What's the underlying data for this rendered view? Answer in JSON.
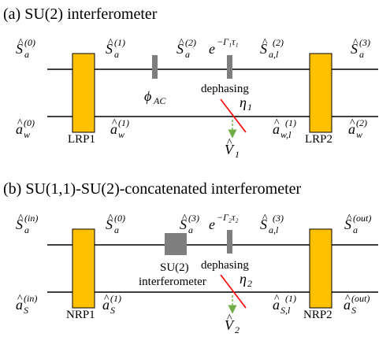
{
  "panel_a": {
    "caption": "(a) SU(2) interferometer",
    "top_labels": [
      {
        "base": "S",
        "sub": "a",
        "sup": "(0)"
      },
      {
        "base": "S",
        "sub": "a",
        "sup": "(1)"
      },
      {
        "base": "S",
        "sub": "a",
        "sup": "(2)"
      },
      {
        "base": "S",
        "sub": "a,l",
        "sup": "(2)"
      },
      {
        "base": "S",
        "sub": "a",
        "sup": "(3)"
      }
    ],
    "decay": {
      "base": "e",
      "exp": "−Γ₁τ₁"
    },
    "bottom_labels": [
      {
        "base": "a",
        "sub": "w",
        "sup": "(0)"
      },
      {
        "base": "a",
        "sub": "w",
        "sup": "(1)"
      },
      {
        "base": "a",
        "sub": "w,l",
        "sup": "(1)"
      },
      {
        "base": "a",
        "sub": "w",
        "sup": "(2)"
      }
    ],
    "box_left": "LRP1",
    "box_right": "LRP2",
    "phase": {
      "base": "ϕ",
      "sub": "AC"
    },
    "dephasing": "dephasing",
    "eta": {
      "base": "η",
      "sub": "1"
    },
    "vacuum": {
      "base": "V",
      "sub": "1"
    }
  },
  "panel_b": {
    "caption": "(b) SU(1,1)-SU(2)-concatenated interferometer",
    "top_labels": [
      {
        "base": "S",
        "sub": "a",
        "sup": "(in)"
      },
      {
        "base": "S",
        "sub": "a",
        "sup": "(0)"
      },
      {
        "base": "S",
        "sub": "a",
        "sup": "(3)"
      },
      {
        "base": "S",
        "sub": "a,l",
        "sup": "(3)"
      },
      {
        "base": "S",
        "sub": "a",
        "sup": "(out)"
      }
    ],
    "decay": {
      "base": "e",
      "exp": "−Γ₂τ₂"
    },
    "bottom_labels": [
      {
        "base": "a",
        "sub": "S",
        "sup": "(in)"
      },
      {
        "base": "a",
        "sub": "S",
        "sup": "(1)"
      },
      {
        "base": "a",
        "sub": "S,l",
        "sup": "(1)"
      },
      {
        "base": "a",
        "sub": "S",
        "sup": "(out)"
      }
    ],
    "box_left": "NRP1",
    "box_right": "NRP2",
    "su2_box": "SU(2)",
    "su2_caption": "interferometer",
    "dephasing": "dephasing",
    "eta": {
      "base": "η",
      "sub": "2"
    },
    "vacuum": {
      "base": "V",
      "sub": "2"
    }
  },
  "colors": {
    "box": "#ffc000",
    "gray": "#7f7f7f",
    "red": "#ff0000",
    "green": "#70ad47",
    "line": "#000000"
  }
}
